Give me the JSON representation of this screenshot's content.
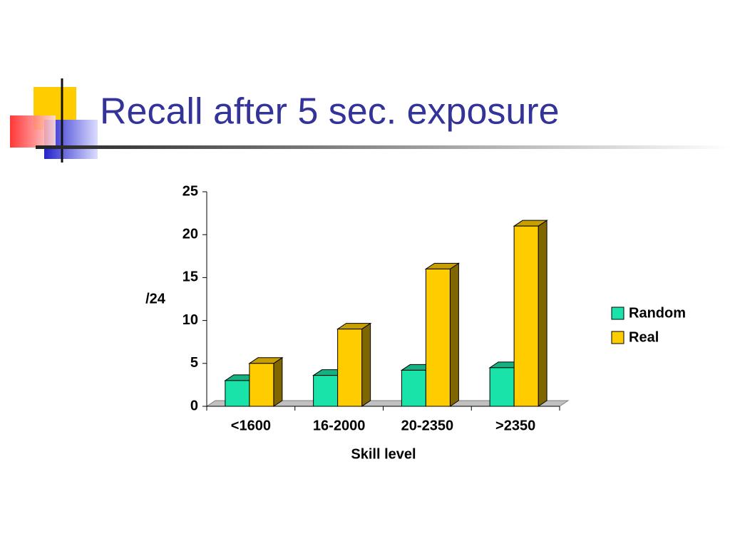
{
  "chart_data": {
    "type": "bar3d",
    "title": "Recall after 5 sec. exposure",
    "categories": [
      "<1600",
      "16-2000",
      "20-2350",
      ">2350"
    ],
    "series": [
      {
        "name": "Random",
        "color": "#19e3a8",
        "values": [
          3,
          3.6,
          4.2,
          4.5
        ]
      },
      {
        "name": "Real",
        "color": "#ffcc00",
        "values": [
          5,
          9,
          16,
          21
        ]
      }
    ],
    "ylim": [
      0,
      25
    ],
    "yticks": [
      0,
      5,
      10,
      15,
      20,
      25
    ],
    "y_label": "/24",
    "x_label": "Skill level",
    "legend": "right"
  }
}
